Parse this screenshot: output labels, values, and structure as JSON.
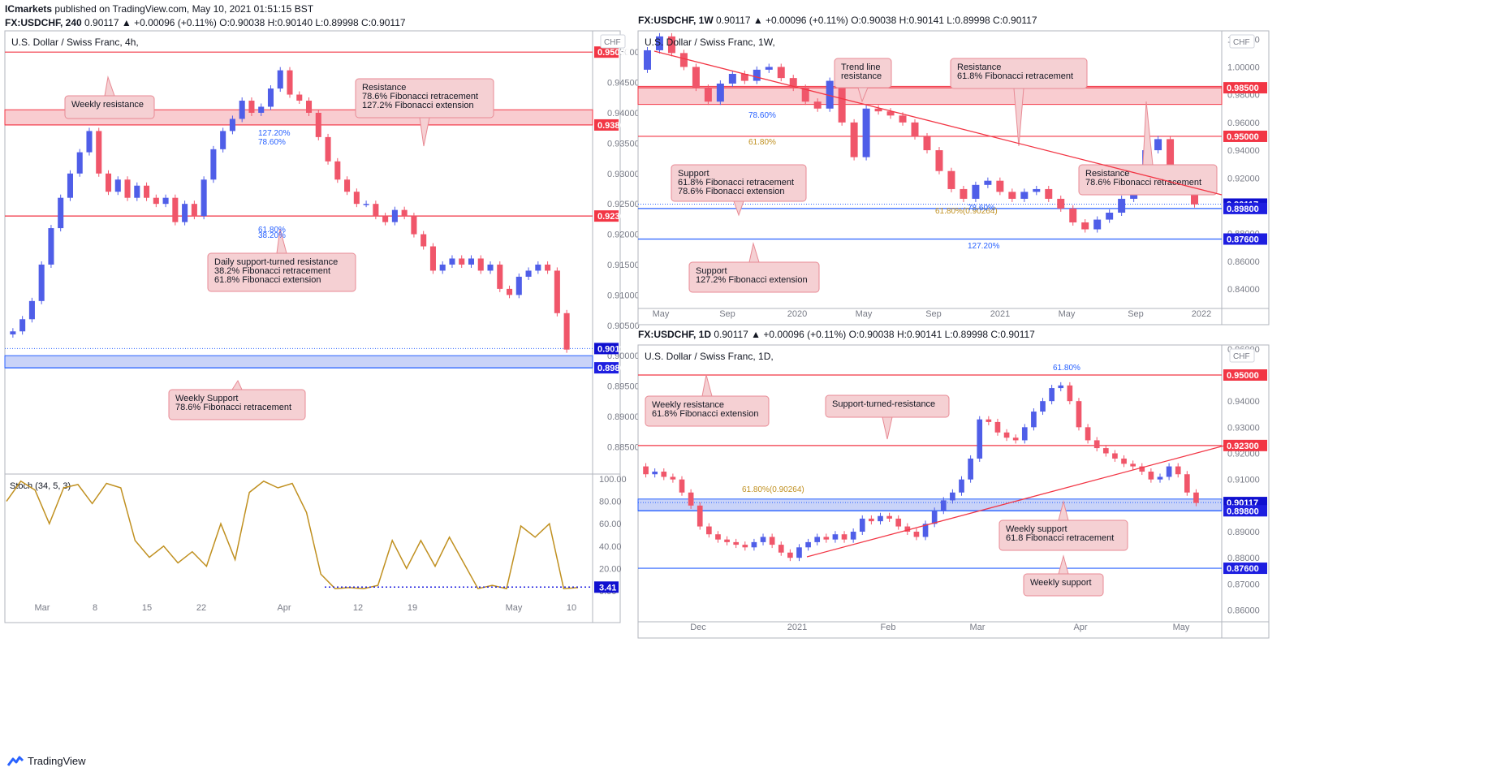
{
  "header": {
    "publisher": "ICmarkets",
    "published_text": "published on TradingView.com, May 10, 2021 01:51:15 BST",
    "left_symbol": "FX:USDCHF, 240",
    "left_ohlc": "0.90117 ▲ +0.00096 (+0.11%) O:0.90038 H:0.90140 L:0.89998 C:0.90117",
    "right_top_symbol": "FX:USDCHF, 1W",
    "right_top_ohlc": "0.90117 ▲ +0.00096 (+0.11%) O:0.90038 H:0.90141 L:0.89998 C:0.90117",
    "right_bottom_symbol": "FX:USDCHF, 1D",
    "right_bottom_ohlc": "0.90117 ▲ +0.00096 (+0.11%) O:0.90038 H:0.90141 L:0.89998 C:0.90117"
  },
  "footer": {
    "brand": "TradingView"
  },
  "colors": {
    "up": "#4f5ee8",
    "down": "#f0566a",
    "resistance": "#f23645",
    "support": "#2962ff",
    "zone_red": "#f7b6bc",
    "zone_blue": "#b2c1f5",
    "stoch": "#c09020",
    "label_bg": "#f5d0d3",
    "label_border": "#e88a94",
    "text": "#131722",
    "axis": "#787b86"
  },
  "chart_data": [
    {
      "id": "h4",
      "type": "line",
      "title": "U.S. Dollar / Swiss Franc, 4h,",
      "currency": "CHF",
      "ylim": [
        0.8805,
        0.9535
      ],
      "y_ticks": [
        "0.95500",
        "0.95000",
        "0.94500",
        "0.94000",
        "0.93500",
        "0.93000",
        "0.92500",
        "0.92000",
        "0.91500",
        "0.91000",
        "0.90500",
        "0.90000",
        "0.89500",
        "0.89000",
        "0.88500"
      ],
      "x_ticks": [
        "Mar",
        "8",
        "15",
        "22",
        "Apr",
        "12",
        "19",
        "May",
        "10"
      ],
      "series": [
        {
          "values": [
            0.9035,
            0.904,
            0.906,
            0.909,
            0.915,
            0.921,
            0.926,
            0.93,
            0.9335,
            0.937,
            0.93,
            0.927,
            0.929,
            0.926,
            0.928,
            0.926,
            0.925,
            0.926,
            0.922,
            0.925,
            0.923,
            0.929,
            0.934,
            0.937,
            0.939,
            0.942,
            0.94,
            0.941,
            0.944,
            0.947,
            0.943,
            0.942,
            0.94,
            0.936,
            0.932,
            0.929,
            0.927,
            0.925,
            0.925,
            0.923,
            0.922,
            0.924,
            0.923,
            0.92,
            0.918,
            0.914,
            0.915,
            0.916,
            0.915,
            0.916,
            0.914,
            0.915,
            0.911,
            0.91,
            0.913,
            0.914,
            0.915,
            0.914,
            0.907,
            0.901
          ]
        }
      ],
      "price_labels": [
        {
          "value": 0.95,
          "text": "0.95000",
          "kind": "resistance"
        },
        {
          "value": 0.938,
          "text": "0.93800",
          "kind": "resistance"
        },
        {
          "value": 0.923,
          "text": "0.92300",
          "kind": "resistance"
        },
        {
          "value": 0.90117,
          "text": "0.90117",
          "kind": "current"
        },
        {
          "value": 0.898,
          "text": "0.89800",
          "kind": "support"
        }
      ],
      "zones": [
        {
          "from": 0.938,
          "to": 0.9405,
          "kind": "red"
        },
        {
          "from": 0.898,
          "to": 0.9,
          "kind": "blue"
        }
      ],
      "fib_labels": [
        "127.20%",
        "78.60%",
        "61.80%",
        "38.20%"
      ],
      "annotations": [
        {
          "lines": [
            "Weekly resistance"
          ]
        },
        {
          "lines": [
            "Resistance",
            "78.6% Fibonacci retracement",
            "127.2% Fibonacci extension"
          ]
        },
        {
          "lines": [
            "Daily support-turned resistance",
            "38.2% Fibonacci retracement",
            "61.8% Fibonacci extension"
          ]
        },
        {
          "lines": [
            "Weekly Support",
            "78.6% Fibonacci retracement"
          ]
        }
      ],
      "indicator": {
        "name": "Stoch (34, 5, 3)",
        "ylim": [
          0,
          100
        ],
        "y_ticks": [
          "100.00",
          "80.00",
          "60.00",
          "40.00",
          "20.00",
          "0.00"
        ],
        "values": [
          80,
          98,
          90,
          60,
          92,
          95,
          78,
          96,
          92,
          45,
          30,
          40,
          25,
          35,
          22,
          60,
          28,
          88,
          98,
          92,
          96,
          70,
          15,
          2,
          3,
          2,
          5,
          45,
          20,
          45,
          22,
          48,
          25,
          2,
          5,
          2,
          58,
          48,
          60,
          2,
          3
        ],
        "current": "3.41"
      }
    },
    {
      "id": "w1",
      "type": "line",
      "title": "U.S. Dollar / Swiss Franc, 1W,",
      "currency": "CHF",
      "ylim": [
        0.826,
        1.026
      ],
      "y_ticks": [
        "1.02000",
        "1.00000",
        "0.98000",
        "0.96000",
        "0.94000",
        "0.92000",
        "0.90000",
        "0.88000",
        "0.86000",
        "0.84000"
      ],
      "x_ticks": [
        "May",
        "Sep",
        "2020",
        "May",
        "Sep",
        "2021",
        "May",
        "Sep",
        "2022"
      ],
      "series": [
        {
          "values": [
            0.998,
            1.012,
            1.022,
            1.01,
            1.0,
            0.985,
            0.975,
            0.988,
            0.995,
            0.99,
            0.998,
            1.0,
            0.992,
            0.985,
            0.975,
            0.97,
            0.99,
            0.96,
            0.935,
            0.97,
            0.968,
            0.965,
            0.96,
            0.95,
            0.94,
            0.925,
            0.912,
            0.905,
            0.915,
            0.918,
            0.91,
            0.905,
            0.91,
            0.912,
            0.905,
            0.898,
            0.888,
            0.883,
            0.89,
            0.895,
            0.905,
            0.925,
            0.94,
            0.948,
            0.925,
            0.91,
            0.901
          ]
        }
      ],
      "price_labels": [
        {
          "value": 0.985,
          "text": "0.98500",
          "kind": "resistance"
        },
        {
          "value": 0.95,
          "text": "0.95000",
          "kind": "resistance"
        },
        {
          "value": 0.90117,
          "text": "0.90117",
          "kind": "current"
        },
        {
          "value": 0.898,
          "text": "0.89800",
          "kind": "support"
        },
        {
          "value": 0.876,
          "text": "0.87600",
          "kind": "support"
        }
      ],
      "zones": [
        {
          "from": 0.973,
          "to": 0.986,
          "kind": "red"
        }
      ],
      "fib_labels": [
        "78.60%",
        "61.80%",
        "61.80%(0.90264)",
        "78.60%",
        "127.20%"
      ],
      "annotations": [
        {
          "lines": [
            "Trend line",
            "resistance"
          ]
        },
        {
          "lines": [
            "Resistance",
            "61.8% Fibonacci retracement"
          ]
        },
        {
          "lines": [
            "Support",
            "61.8% Fibonacci retracement",
            "78.6% Fibonacci extension"
          ]
        },
        {
          "lines": [
            "Resistance",
            "78.6% Fibonacci retracement"
          ]
        },
        {
          "lines": [
            "Support",
            "127.2% Fibonacci extension"
          ]
        }
      ]
    },
    {
      "id": "d1",
      "type": "line",
      "title": "U.S. Dollar / Swiss Franc, 1D,",
      "currency": "CHF",
      "ylim": [
        0.8555,
        0.9615
      ],
      "y_ticks": [
        "0.96000",
        "0.95000",
        "0.94000",
        "0.93000",
        "0.92000",
        "0.91000",
        "0.90000",
        "0.89000",
        "0.88000",
        "0.87000",
        "0.86000"
      ],
      "x_ticks": [
        "Dec",
        "2021",
        "Feb",
        "Mar",
        "Apr",
        "May"
      ],
      "series": [
        {
          "values": [
            0.915,
            0.912,
            0.913,
            0.911,
            0.91,
            0.905,
            0.9,
            0.892,
            0.889,
            0.887,
            0.886,
            0.885,
            0.884,
            0.886,
            0.888,
            0.885,
            0.882,
            0.88,
            0.884,
            0.886,
            0.888,
            0.887,
            0.889,
            0.887,
            0.89,
            0.895,
            0.894,
            0.896,
            0.895,
            0.892,
            0.89,
            0.888,
            0.893,
            0.898,
            0.902,
            0.905,
            0.91,
            0.918,
            0.933,
            0.932,
            0.928,
            0.926,
            0.925,
            0.93,
            0.936,
            0.94,
            0.945,
            0.946,
            0.94,
            0.93,
            0.925,
            0.922,
            0.92,
            0.918,
            0.916,
            0.915,
            0.913,
            0.91,
            0.911,
            0.915,
            0.912,
            0.905,
            0.901
          ]
        }
      ],
      "price_labels": [
        {
          "value": 0.95,
          "text": "0.95000",
          "kind": "resistance"
        },
        {
          "value": 0.923,
          "text": "0.92300",
          "kind": "resistance"
        },
        {
          "value": 0.90117,
          "text": "0.90117",
          "kind": "current"
        },
        {
          "value": 0.898,
          "text": "0.89800",
          "kind": "support"
        },
        {
          "value": 0.876,
          "text": "0.87600",
          "kind": "support"
        }
      ],
      "zones": [
        {
          "from": 0.898,
          "to": 0.9025,
          "kind": "blue"
        }
      ],
      "fib_labels": [
        "61.80%",
        "61.80%(0.90264)"
      ],
      "annotations": [
        {
          "lines": [
            "Weekly resistance",
            "61.8% Fibonacci extension"
          ]
        },
        {
          "lines": [
            "Support-turned-resistance"
          ]
        },
        {
          "lines": [
            "Weekly support",
            "61.8 Fibonacci retracement"
          ]
        },
        {
          "lines": [
            "Weekly support"
          ]
        }
      ]
    }
  ]
}
